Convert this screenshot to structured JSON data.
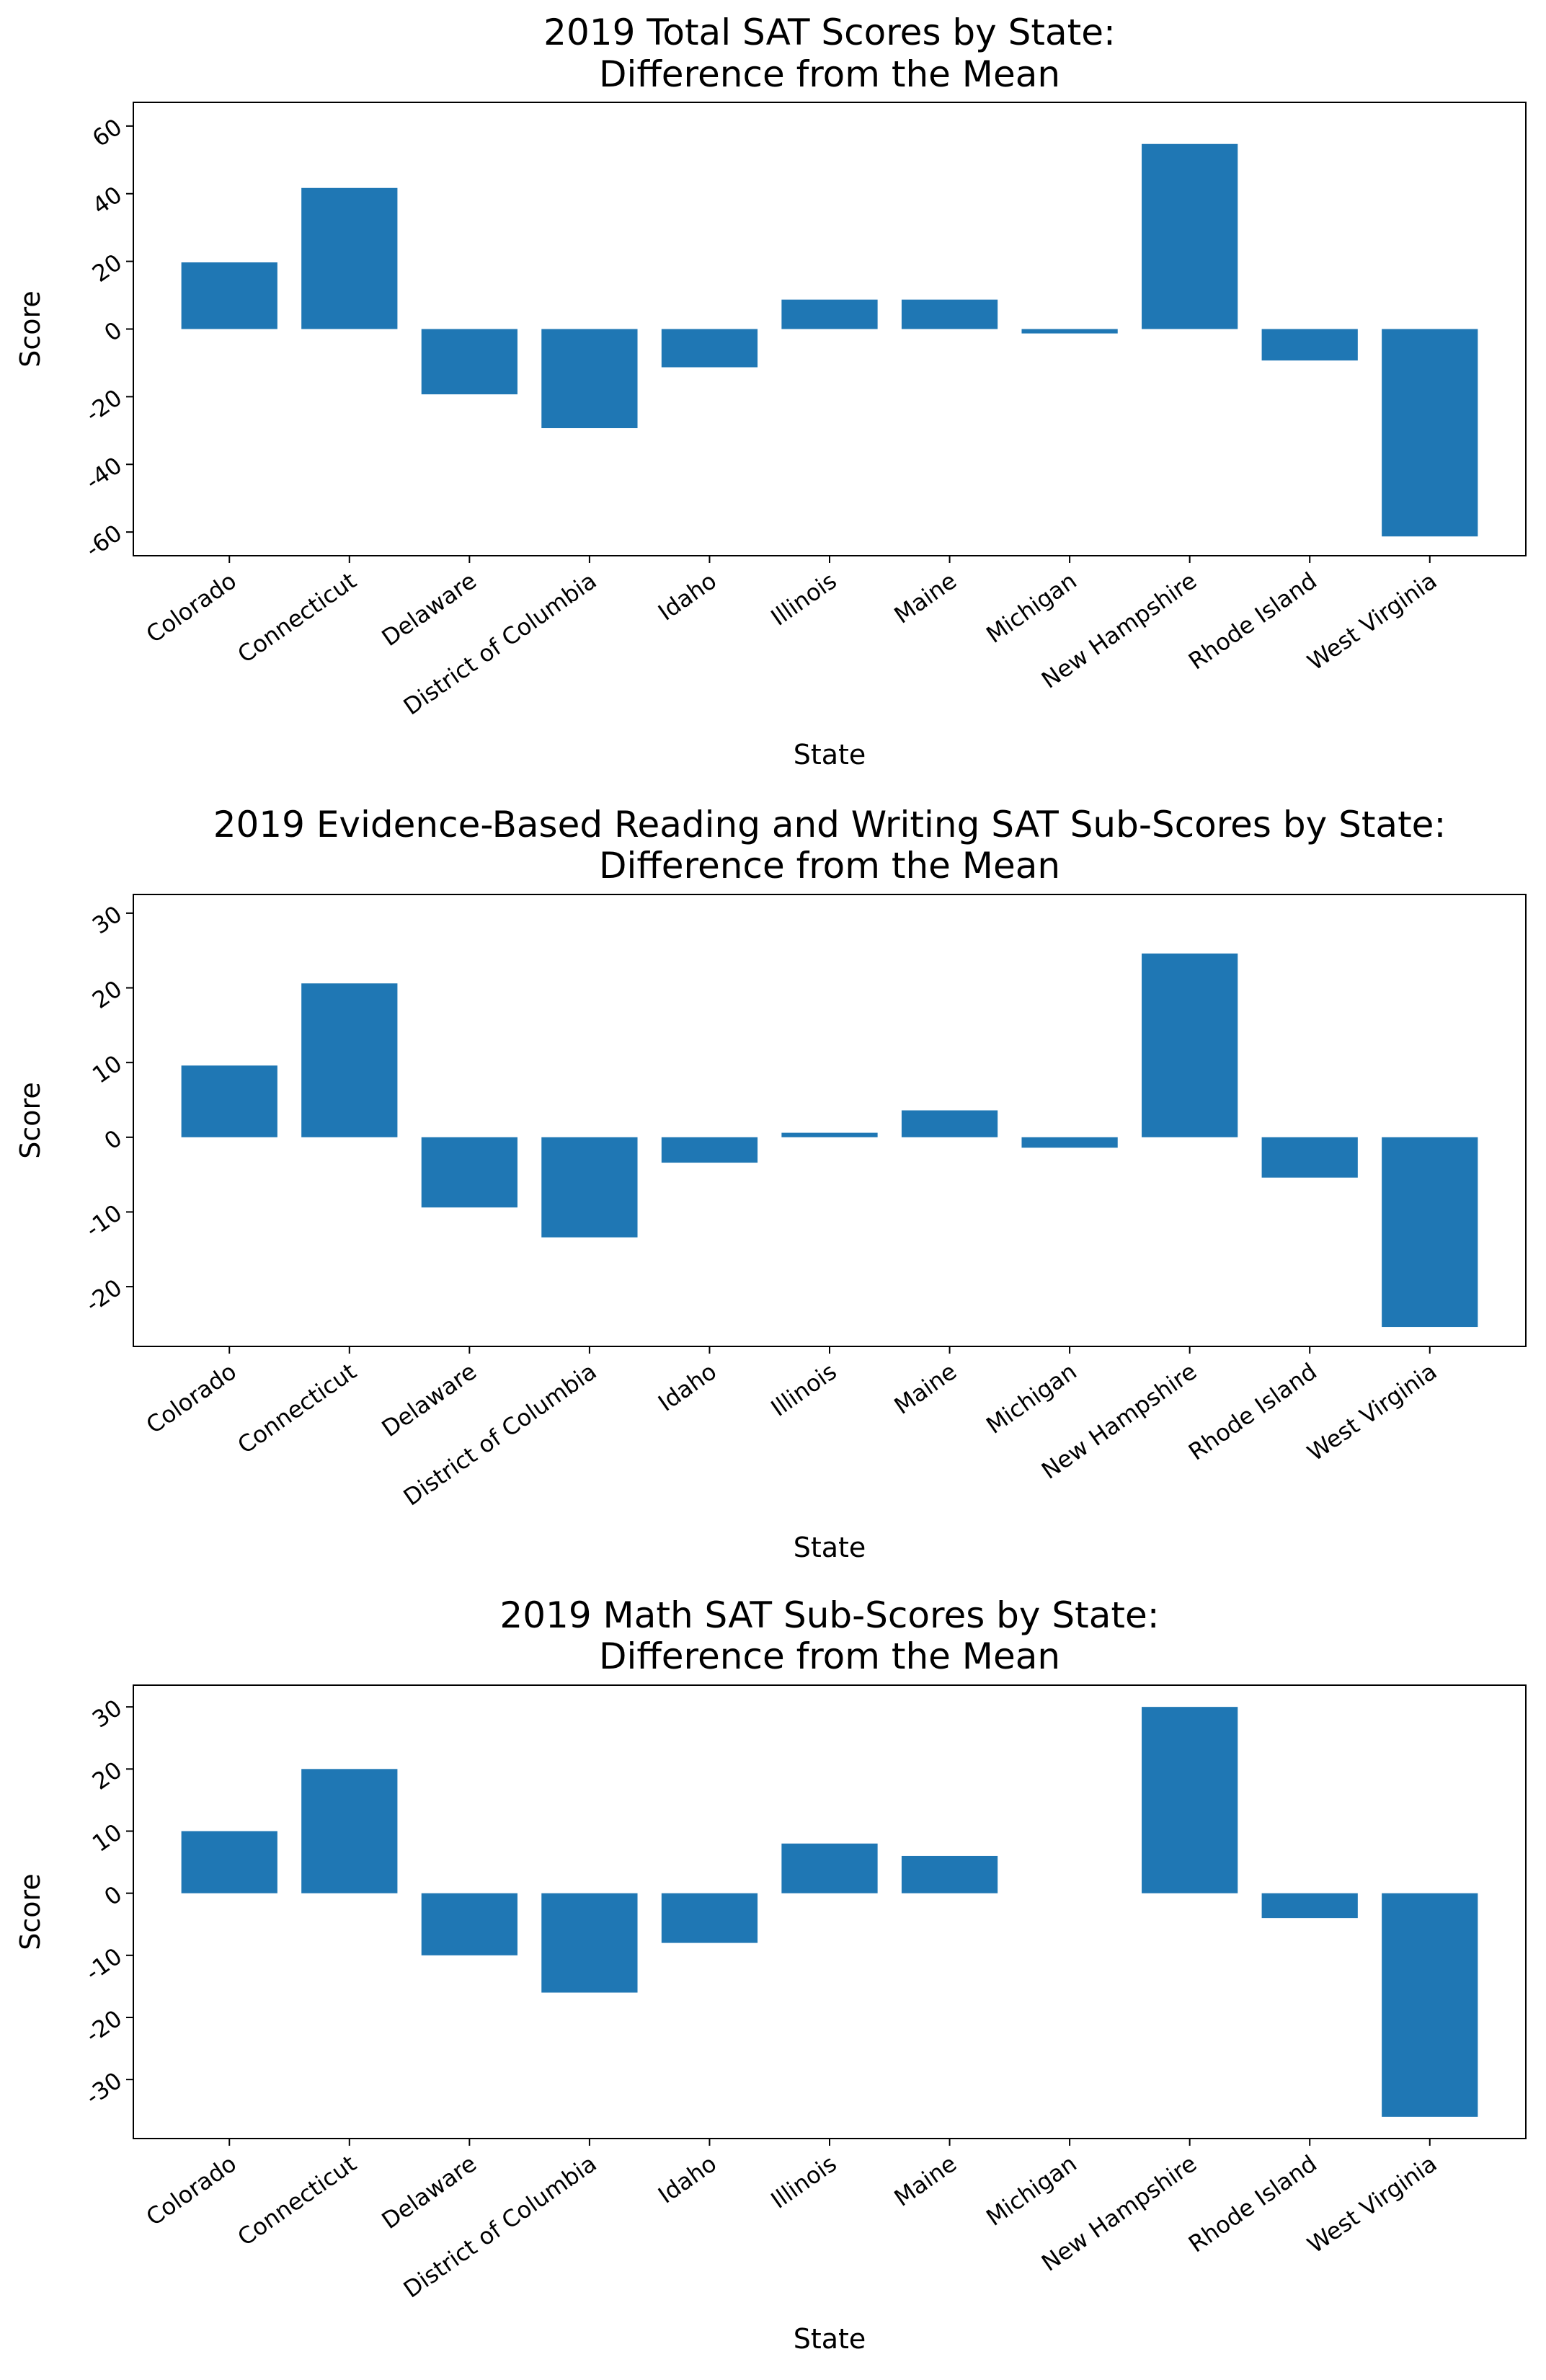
{
  "chart_data": [
    {
      "type": "bar",
      "title": [
        "2019 Total SAT Scores by State:",
        "Difference from the Mean"
      ],
      "xlabel": "State",
      "ylabel": "Score",
      "categories": [
        "Colorado",
        "Connecticut",
        "Delaware",
        "District of Columbia",
        "Idaho",
        "Illinois",
        "Maine",
        "Michigan",
        "New Hampshire",
        "Rhode Island",
        "West Virginia"
      ],
      "values": [
        19.7,
        41.7,
        -19.3,
        -29.3,
        -11.3,
        8.7,
        8.7,
        -1.3,
        54.7,
        -9.3,
        -61.3
      ],
      "yticks": [
        -60,
        -40,
        -20,
        0,
        20,
        40,
        60
      ],
      "ylim": [
        -67,
        67
      ],
      "grid": false,
      "color": "#1f77b4"
    },
    {
      "type": "bar",
      "title": [
        "2019 Evidence-Based Reading and Writing SAT Sub-Scores by State:",
        "Difference from the Mean"
      ],
      "xlabel": "State",
      "ylabel": "Score",
      "categories": [
        "Colorado",
        "Connecticut",
        "Delaware",
        "District of Columbia",
        "Idaho",
        "Illinois",
        "Maine",
        "Michigan",
        "New Hampshire",
        "Rhode Island",
        "West Virginia"
      ],
      "values": [
        9.6,
        20.6,
        -9.4,
        -13.4,
        -3.4,
        0.6,
        3.6,
        -1.4,
        24.6,
        -5.4,
        -25.4
      ],
      "yticks": [
        -20,
        -10,
        0,
        10,
        20,
        30
      ],
      "ylim": [
        -28,
        32.5
      ],
      "grid": false,
      "color": "#1f77b4"
    },
    {
      "type": "bar",
      "title": [
        "2019 Math SAT Sub-Scores by State:",
        "Difference from the Mean"
      ],
      "xlabel": "State",
      "ylabel": "Score",
      "categories": [
        "Colorado",
        "Connecticut",
        "Delaware",
        "District of Columbia",
        "Idaho",
        "Illinois",
        "Maine",
        "Michigan",
        "New Hampshire",
        "Rhode Island",
        "West Virginia"
      ],
      "values": [
        10,
        20,
        -10,
        -16,
        -8,
        8,
        6,
        0,
        30,
        -4,
        -36
      ],
      "yticks": [
        -30,
        -20,
        -10,
        0,
        10,
        20,
        30
      ],
      "ylim": [
        -39.5,
        33.5
      ],
      "grid": false,
      "color": "#1f77b4"
    }
  ]
}
